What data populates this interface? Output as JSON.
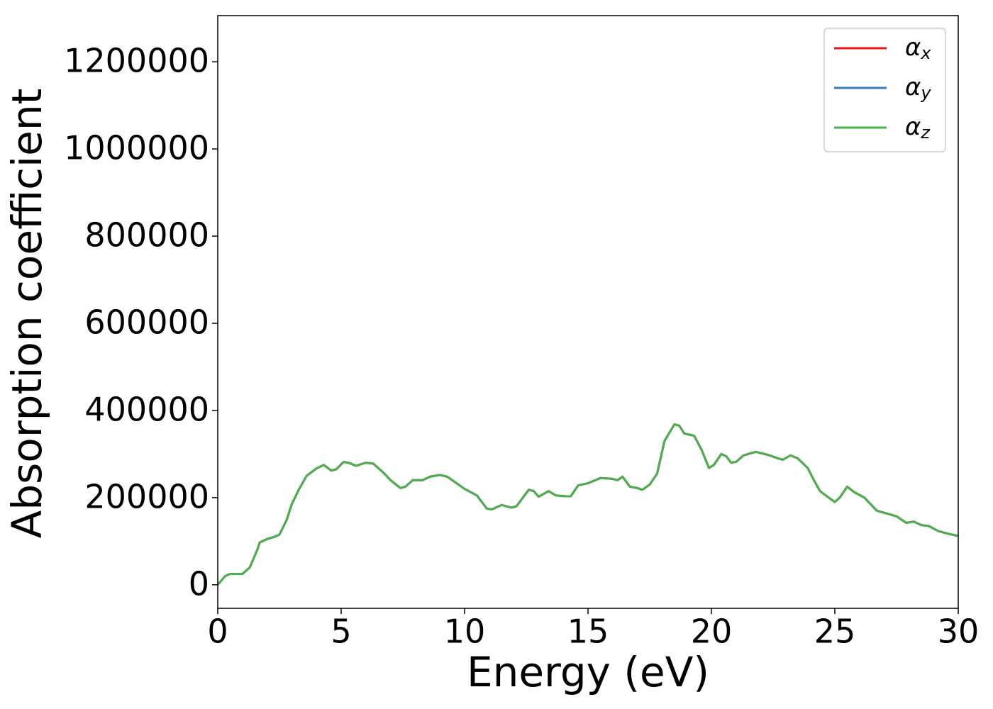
{
  "chart_data": {
    "type": "line",
    "x_label": "Energy (eV)",
    "y_label": "Absorption coefficient",
    "x": [
      0,
      0.3,
      0.5,
      1.0,
      1.3,
      1.6,
      1.7,
      2.0,
      2.3,
      2.5,
      2.8,
      3.0,
      3.3,
      3.6,
      4.0,
      4.3,
      4.6,
      4.8,
      5.1,
      5.3,
      5.6,
      6.0,
      6.3,
      6.7,
      7.0,
      7.4,
      7.6,
      7.9,
      8.3,
      8.6,
      9.0,
      9.3,
      9.7,
      10.0,
      10.5,
      10.9,
      11.1,
      11.5,
      11.9,
      12.1,
      12.6,
      12.8,
      13.0,
      13.4,
      13.7,
      14.1,
      14.3,
      14.6,
      15.0,
      15.5,
      16.0,
      16.2,
      16.4,
      16.7,
      17.0,
      17.2,
      17.5,
      17.8,
      18.1,
      18.5,
      18.7,
      18.9,
      19.3,
      19.6,
      19.9,
      20.1,
      20.4,
      20.6,
      20.8,
      21.0,
      21.3,
      21.8,
      22.3,
      22.7,
      22.9,
      23.2,
      23.5,
      23.9,
      24.2,
      24.4,
      24.8,
      25.0,
      25.2,
      25.5,
      25.8,
      26.2,
      26.7,
      27.2,
      27.5,
      27.9,
      28.2,
      28.5,
      28.8,
      29.2,
      29.6,
      30.0
    ],
    "series": [
      {
        "name": "αx",
        "color": "#e41a1c",
        "values": [
          0,
          20000,
          25000,
          25000,
          40000,
          80000,
          97000,
          105000,
          110000,
          115000,
          150000,
          185000,
          220000,
          250000,
          267000,
          275000,
          262000,
          265000,
          282000,
          280000,
          273000,
          280000,
          278000,
          258000,
          240000,
          222000,
          225000,
          240000,
          240000,
          248000,
          252000,
          248000,
          232000,
          220000,
          205000,
          175000,
          173000,
          183000,
          177000,
          180000,
          218000,
          215000,
          202000,
          215000,
          205000,
          203000,
          203000,
          228000,
          233000,
          245000,
          243000,
          240000,
          248000,
          225000,
          222000,
          218000,
          230000,
          255000,
          330000,
          368000,
          365000,
          347000,
          342000,
          310000,
          268000,
          275000,
          300000,
          295000,
          280000,
          282000,
          297000,
          305000,
          298000,
          290000,
          287000,
          297000,
          290000,
          268000,
          235000,
          215000,
          198000,
          190000,
          200000,
          225000,
          212000,
          200000,
          170000,
          162000,
          157000,
          142000,
          145000,
          137000,
          135000,
          123000,
          117000,
          112000
        ]
      },
      {
        "name": "αy",
        "color": "#377eb8",
        "values": [
          0,
          20000,
          25000,
          25000,
          40000,
          80000,
          97000,
          105000,
          110000,
          115000,
          150000,
          185000,
          220000,
          250000,
          267000,
          275000,
          262000,
          265000,
          282000,
          280000,
          273000,
          280000,
          278000,
          258000,
          240000,
          222000,
          225000,
          240000,
          240000,
          248000,
          252000,
          248000,
          232000,
          220000,
          205000,
          175000,
          173000,
          183000,
          177000,
          180000,
          218000,
          215000,
          202000,
          215000,
          205000,
          203000,
          203000,
          228000,
          233000,
          245000,
          243000,
          240000,
          248000,
          225000,
          222000,
          218000,
          230000,
          255000,
          330000,
          368000,
          365000,
          347000,
          342000,
          310000,
          268000,
          275000,
          300000,
          295000,
          280000,
          282000,
          297000,
          305000,
          298000,
          290000,
          287000,
          297000,
          290000,
          268000,
          235000,
          215000,
          198000,
          190000,
          200000,
          225000,
          212000,
          200000,
          170000,
          162000,
          157000,
          142000,
          145000,
          137000,
          135000,
          123000,
          117000,
          112000
        ]
      },
      {
        "name": "αz",
        "color": "#4daf4a",
        "values": [
          0,
          20000,
          25000,
          25000,
          40000,
          80000,
          97000,
          105000,
          110000,
          115000,
          150000,
          185000,
          220000,
          250000,
          267000,
          275000,
          262000,
          265000,
          282000,
          280000,
          273000,
          280000,
          278000,
          258000,
          240000,
          222000,
          225000,
          240000,
          240000,
          248000,
          252000,
          248000,
          232000,
          220000,
          205000,
          175000,
          173000,
          183000,
          177000,
          180000,
          218000,
          215000,
          202000,
          215000,
          205000,
          203000,
          203000,
          228000,
          233000,
          245000,
          243000,
          240000,
          248000,
          225000,
          222000,
          218000,
          230000,
          255000,
          330000,
          368000,
          365000,
          347000,
          342000,
          310000,
          268000,
          275000,
          300000,
          295000,
          280000,
          282000,
          297000,
          305000,
          298000,
          290000,
          287000,
          297000,
          290000,
          268000,
          235000,
          215000,
          198000,
          190000,
          200000,
          225000,
          212000,
          200000,
          170000,
          162000,
          157000,
          142000,
          145000,
          137000,
          135000,
          123000,
          117000,
          112000
        ]
      }
    ],
    "xlim": [
      0,
      30
    ],
    "xticks": [
      0,
      5,
      10,
      15,
      20,
      25,
      30
    ],
    "ylim": [
      -54000,
      1306000
    ],
    "yticks": [
      0,
      200000,
      400000,
      600000,
      800000,
      1000000,
      1200000
    ],
    "legend": "upper right"
  }
}
